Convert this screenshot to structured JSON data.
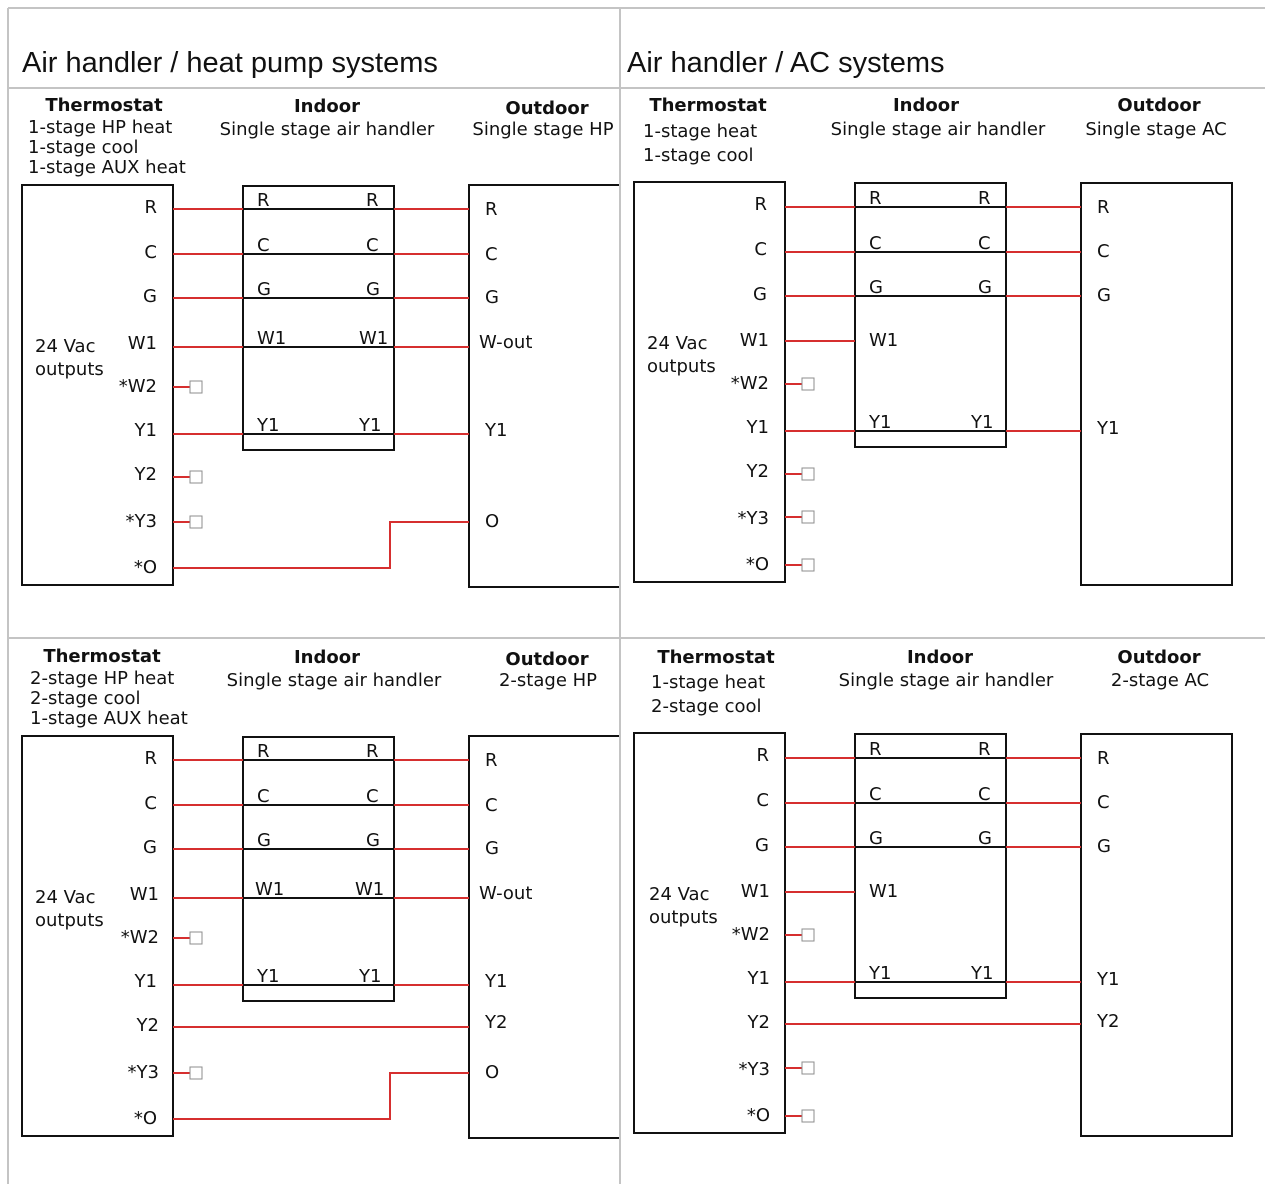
{
  "columns": [
    {
      "title": "Air handler / heat pump systems"
    },
    {
      "title": "Air handler / AC systems"
    }
  ],
  "panels": [
    {
      "id": "hp-single",
      "thermostat": {
        "title": "Thermostat",
        "lines": [
          "1-stage HP heat",
          "1-stage cool",
          "1-stage AUX heat"
        ]
      },
      "indoor": {
        "title": "Indoor",
        "subtitle": "Single stage air handler"
      },
      "outdoor": {
        "title": "Outdoor",
        "subtitle": "Single stage HP"
      },
      "outputs_label": [
        "24 Vac",
        "outputs"
      ],
      "terminals": [
        "R",
        "C",
        "G",
        "W1",
        "*W2",
        "Y1",
        "Y2",
        "*Y3",
        "*O"
      ],
      "indoor_terminals": [
        "R",
        "C",
        "G",
        "W1",
        "Y1"
      ],
      "outdoor_terminals": [
        "R",
        "C",
        "G",
        "W-out",
        "Y1",
        "O"
      ]
    },
    {
      "id": "ac-single",
      "thermostat": {
        "title": "Thermostat",
        "lines": [
          "1-stage heat",
          "1-stage cool"
        ]
      },
      "indoor": {
        "title": "Indoor",
        "subtitle": "Single stage air handler"
      },
      "outdoor": {
        "title": "Outdoor",
        "subtitle": "Single stage AC"
      },
      "outputs_label": [
        "24 Vac",
        "outputs"
      ],
      "terminals": [
        "R",
        "C",
        "G",
        "W1",
        "*W2",
        "Y1",
        "Y2",
        "*Y3",
        "*O"
      ],
      "indoor_terminals": [
        "R",
        "C",
        "G",
        "W1",
        "Y1"
      ],
      "outdoor_terminals": [
        "R",
        "C",
        "G",
        "Y1"
      ]
    },
    {
      "id": "hp-two",
      "thermostat": {
        "title": "Thermostat",
        "lines": [
          "2-stage HP heat",
          "2-stage cool",
          "1-stage AUX heat"
        ]
      },
      "indoor": {
        "title": "Indoor",
        "subtitle": "Single stage air handler"
      },
      "outdoor": {
        "title": "Outdoor",
        "subtitle": "2-stage HP"
      },
      "outputs_label": [
        "24 Vac",
        "outputs"
      ],
      "terminals": [
        "R",
        "C",
        "G",
        "W1",
        "*W2",
        "Y1",
        "Y2",
        "*Y3",
        "*O"
      ],
      "indoor_terminals": [
        "R",
        "C",
        "G",
        "W1",
        "Y1"
      ],
      "outdoor_terminals": [
        "R",
        "C",
        "G",
        "W-out",
        "Y1",
        "Y2",
        "O"
      ]
    },
    {
      "id": "ac-two",
      "thermostat": {
        "title": "Thermostat",
        "lines": [
          "1-stage heat",
          "2-stage cool"
        ]
      },
      "indoor": {
        "title": "Indoor",
        "subtitle": "Single stage air handler"
      },
      "outdoor": {
        "title": "Outdoor",
        "subtitle": "2-stage AC"
      },
      "outputs_label": [
        "24 Vac",
        "outputs"
      ],
      "terminals": [
        "R",
        "C",
        "G",
        "W1",
        "*W2",
        "Y1",
        "Y2",
        "*Y3",
        "*O"
      ],
      "indoor_terminals": [
        "R",
        "C",
        "G",
        "W1",
        "Y1"
      ],
      "outdoor_terminals": [
        "R",
        "C",
        "G",
        "Y1",
        "Y2"
      ]
    }
  ],
  "colors": {
    "wire": "#d62f2f",
    "frame": "#111111",
    "grid": "#c4c4c4"
  }
}
